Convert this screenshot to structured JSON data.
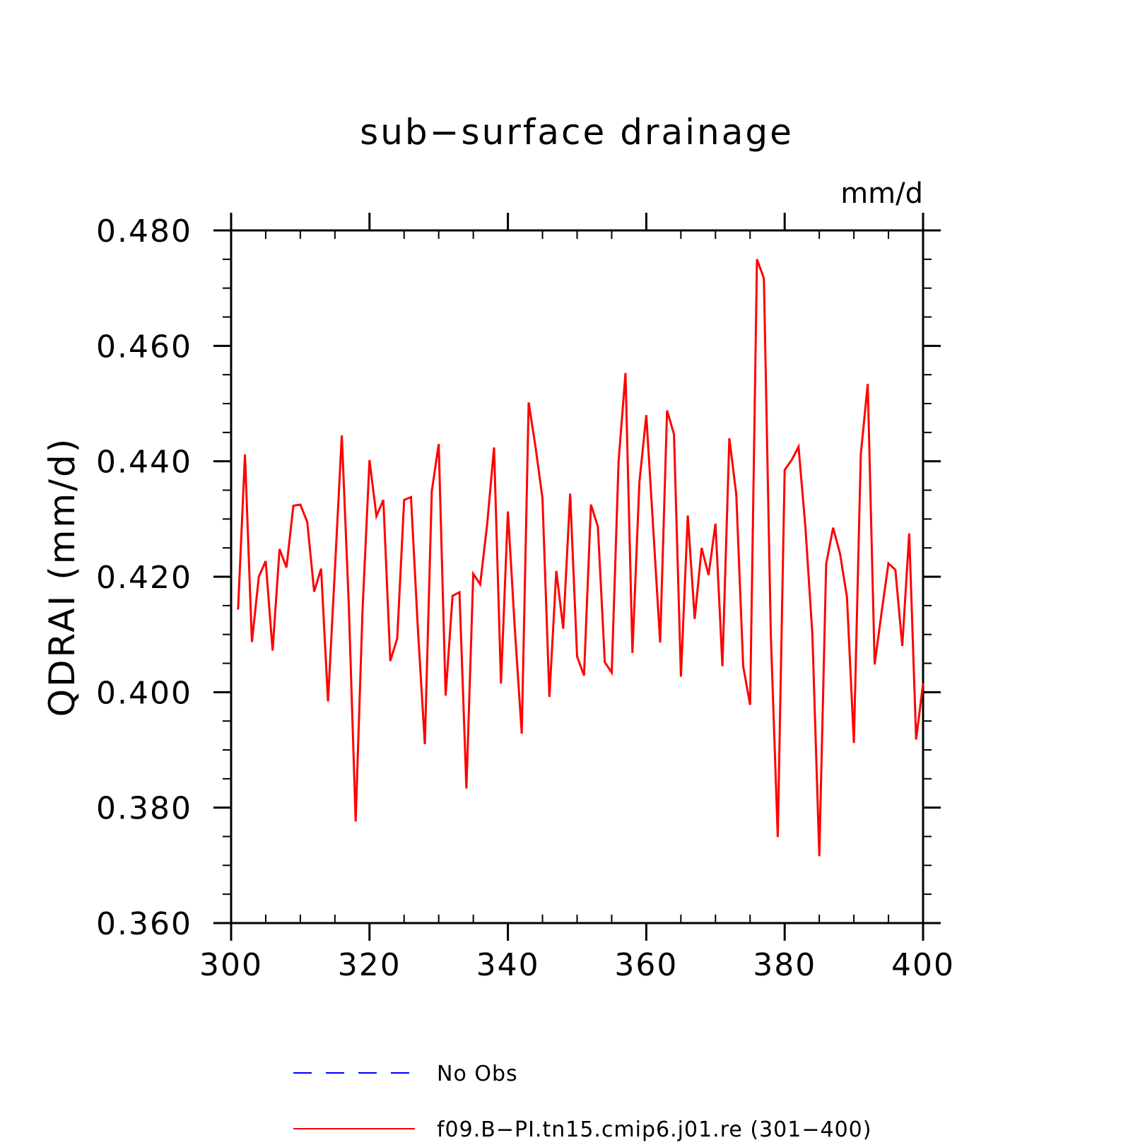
{
  "chart_data": {
    "type": "line",
    "title": "sub−surface drainage",
    "units": "mm/d",
    "ylabel": "QDRAI  (mm/d)",
    "xlabel": "",
    "xlim": [
      300,
      400
    ],
    "ylim": [
      0.36,
      0.48
    ],
    "x_ticks": [
      300,
      320,
      340,
      360,
      380,
      400
    ],
    "x_tick_labels": [
      "300",
      "320",
      "340",
      "360",
      "380",
      "400"
    ],
    "y_ticks": [
      0.36,
      0.38,
      0.4,
      0.42,
      0.44,
      0.46,
      0.48
    ],
    "y_tick_labels": [
      "0.360",
      "0.380",
      "0.400",
      "0.420",
      "0.440",
      "0.460",
      "0.480"
    ],
    "grid": false,
    "legend_position": "bottom",
    "legend": [
      {
        "label": "No Obs",
        "color": "#0000ff",
        "style": "dashed"
      },
      {
        "label": "f09.B−PI.tn15.cmip6.j01.re (301−400)",
        "color": "#ff0000",
        "style": "solid"
      }
    ],
    "series": [
      {
        "name": "f09.B−PI.tn15.cmip6.j01.re (301−400)",
        "color": "#ff0000",
        "x": [
          301,
          302,
          303,
          304,
          305,
          306,
          307,
          308,
          309,
          310,
          311,
          312,
          313,
          314,
          315,
          316,
          317,
          318,
          319,
          320,
          321,
          322,
          323,
          324,
          325,
          326,
          327,
          328,
          329,
          330,
          331,
          332,
          333,
          334,
          335,
          336,
          337,
          338,
          339,
          340,
          341,
          342,
          343,
          344,
          345,
          346,
          347,
          348,
          349,
          350,
          351,
          352,
          353,
          354,
          355,
          356,
          357,
          358,
          359,
          360,
          361,
          362,
          363,
          364,
          365,
          366,
          367,
          368,
          369,
          370,
          371,
          372,
          373,
          374,
          375,
          376,
          377,
          378,
          379,
          380,
          381,
          382,
          383,
          384,
          385,
          386,
          387,
          388,
          389,
          390,
          391,
          392,
          393,
          394,
          395,
          396,
          397,
          398,
          399,
          400
        ],
        "values": [
          0.4143,
          0.4412,
          0.4087,
          0.42,
          0.4227,
          0.4072,
          0.4248,
          0.4216,
          0.4323,
          0.4325,
          0.4295,
          0.4174,
          0.4214,
          0.3984,
          0.4214,
          0.4445,
          0.4154,
          0.3776,
          0.4144,
          0.4402,
          0.4305,
          0.4333,
          0.4054,
          0.4093,
          0.4333,
          0.4338,
          0.4108,
          0.391,
          0.4348,
          0.443,
          0.3994,
          0.4167,
          0.4173,
          0.3833,
          0.4205,
          0.4187,
          0.429,
          0.4424,
          0.4015,
          0.4313,
          0.411,
          0.3928,
          0.4502,
          0.4424,
          0.4336,
          0.3992,
          0.421,
          0.411,
          0.4344,
          0.4062,
          0.4029,
          0.4325,
          0.4287,
          0.4052,
          0.4034,
          0.44,
          0.4553,
          0.4068,
          0.4363,
          0.448,
          0.4284,
          0.4086,
          0.4488,
          0.4447,
          0.4027,
          0.4306,
          0.4127,
          0.425,
          0.4203,
          0.4292,
          0.4045,
          0.444,
          0.4343,
          0.4045,
          0.3978,
          0.475,
          0.4717,
          0.4099,
          0.3749,
          0.4385,
          0.4402,
          0.4425,
          0.4285,
          0.41,
          0.3716,
          0.4222,
          0.4285,
          0.424,
          0.4165,
          0.3912,
          0.4412,
          0.4534,
          0.4048,
          0.4138,
          0.4223,
          0.4212,
          0.408,
          0.4275,
          0.3918,
          0.4015
        ]
      }
    ]
  }
}
